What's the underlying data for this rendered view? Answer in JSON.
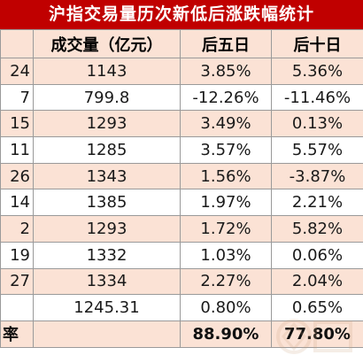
{
  "title": "沪指交易量历次新低后涨跌幅统计",
  "headers": [
    "",
    "成交量（亿元）",
    "后五日",
    "后十日"
  ],
  "rows": [
    {
      "label": "24",
      "volume": "1143",
      "d5": "3.85%",
      "d10": "5.36%",
      "d5_sign": "pos",
      "d10_sign": "pos"
    },
    {
      "label": "7",
      "volume": "799.8",
      "d5": "-12.26%",
      "d10": "-11.46%",
      "d5_sign": "neg",
      "d10_sign": "neg"
    },
    {
      "label": "15",
      "volume": "1293",
      "d5": "3.49%",
      "d10": "0.13%",
      "d5_sign": "pos",
      "d10_sign": "pos"
    },
    {
      "label": "11",
      "volume": "1285",
      "d5": "3.57%",
      "d10": "5.57%",
      "d5_sign": "pos",
      "d10_sign": "pos"
    },
    {
      "label": "26",
      "volume": "1343",
      "d5": "1.56%",
      "d10": "-3.87%",
      "d5_sign": "pos",
      "d10_sign": "neg"
    },
    {
      "label": "14",
      "volume": "1385",
      "d5": "1.97%",
      "d10": "2.21%",
      "d5_sign": "pos",
      "d10_sign": "pos"
    },
    {
      "label": "2",
      "volume": "1293",
      "d5": "1.72%",
      "d10": "5.82%",
      "d5_sign": "pos",
      "d10_sign": "pos"
    },
    {
      "label": "19",
      "volume": "1332",
      "d5": "1.03%",
      "d10": "0.06%",
      "d5_sign": "pos",
      "d10_sign": "pos"
    },
    {
      "label": "27",
      "volume": "1334",
      "d5": "2.27%",
      "d10": "2.04%",
      "d5_sign": "pos",
      "d10_sign": "pos"
    },
    {
      "label": "",
      "volume": "1245.31",
      "d5": "0.80%",
      "d10": "0.65%",
      "d5_sign": "pos",
      "d10_sign": "pos"
    }
  ],
  "total": {
    "label": "率",
    "volume": "",
    "d5": "88.90%",
    "d10": "77.80%"
  },
  "colors": {
    "title_bg": "#c00000",
    "header_bg": "#fbe2d5",
    "positive": "#e8302e",
    "negative": "#56a832"
  }
}
